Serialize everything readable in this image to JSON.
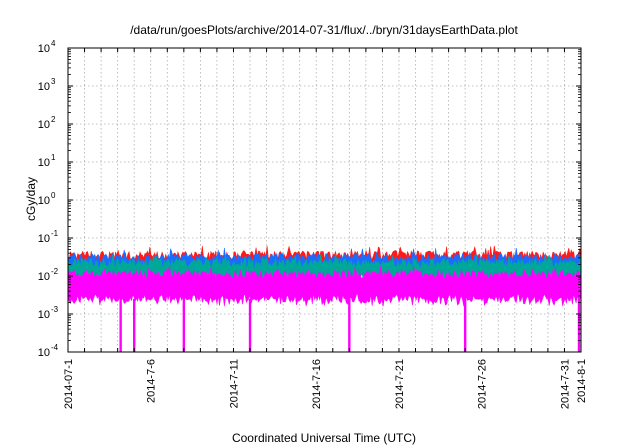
{
  "chart_data": {
    "type": "line",
    "title": "/data/run/goesPlots/archive/2014-07-31/flux/../bryn/31daysEarthData.plot",
    "xlabel": "Coordinated Universal Time (UTC)",
    "ylabel": "cGy/day",
    "yscale": "log",
    "ylim": [
      0.0001,
      10000
    ],
    "y_ticks": [
      {
        "base": "10",
        "exp": "-4",
        "value": 0.0001
      },
      {
        "base": "10",
        "exp": "-3",
        "value": 0.001
      },
      {
        "base": "10",
        "exp": "-2",
        "value": 0.01
      },
      {
        "base": "10",
        "exp": "-1",
        "value": 0.1
      },
      {
        "base": "10",
        "exp": "0",
        "value": 1
      },
      {
        "base": "10",
        "exp": "1",
        "value": 10
      },
      {
        "base": "10",
        "exp": "2",
        "value": 100
      },
      {
        "base": "10",
        "exp": "3",
        "value": 1000
      },
      {
        "base": "10",
        "exp": "4",
        "value": 10000
      }
    ],
    "xlim": [
      "2014-07-01",
      "2014-08-01"
    ],
    "x_tick_labels": [
      {
        "label": "2014-07-1",
        "date": "2014-07-01"
      },
      {
        "label": "2014-7-6",
        "date": "2014-07-06"
      },
      {
        "label": "2014-7-11",
        "date": "2014-07-11"
      },
      {
        "label": "2014-7-16",
        "date": "2014-07-16"
      },
      {
        "label": "2014-7-21",
        "date": "2014-07-21"
      },
      {
        "label": "2014-7-26",
        "date": "2014-07-26"
      },
      {
        "label": "2014-7-31",
        "date": "2014-07-31"
      },
      {
        "label": "2014-8-1",
        "date": "2014-08-01"
      }
    ],
    "grid": true,
    "legend": "none",
    "series": [
      {
        "color": "#ff1a1a",
        "peak_typical": 0.035,
        "low_typical": 0.02
      },
      {
        "color": "#1a6cff",
        "peak_typical": 0.03,
        "low_typical": 0.012
      },
      {
        "color": "#00a89a",
        "peak_typical": 0.022,
        "low_typical": 0.008
      },
      {
        "color": "#ff00ff",
        "peak_typical": 0.011,
        "low_typical": 0.0025
      }
    ],
    "dropouts": [
      {
        "date": "2014-07-04",
        "value": 0.0001
      },
      {
        "date": "2014-07-05",
        "value": 0.0001
      },
      {
        "date": "2014-07-08",
        "value": 0.0001
      },
      {
        "date": "2014-07-12",
        "value": 0.0001
      },
      {
        "date": "2014-07-18",
        "value": 0.0001
      },
      {
        "date": "2014-07-25",
        "value": 0.0001
      },
      {
        "date": "2014-08-01",
        "value": 0.0001
      }
    ]
  }
}
